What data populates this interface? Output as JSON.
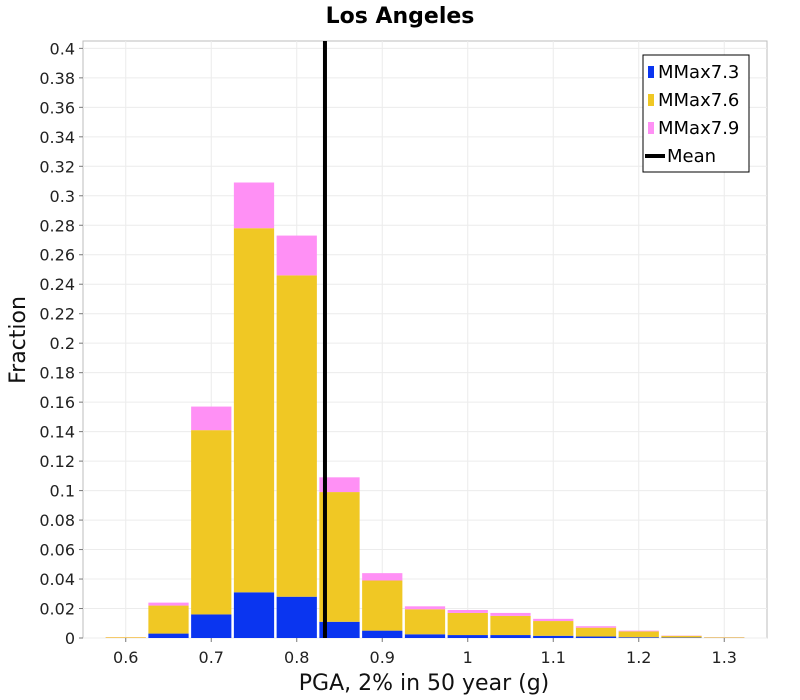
{
  "chart_data": {
    "type": "bar",
    "stacked": true,
    "title": "Los Angeles",
    "xlabel": "PGA, 2% in 50 year (g)",
    "ylabel": "Fraction",
    "xlim": [
      0.55,
      1.35
    ],
    "ylim": [
      0,
      0.405
    ],
    "grid": true,
    "legend_position": "top-right",
    "x_ticks": [
      "0.6",
      "0.7",
      "0.8",
      "0.9",
      "1",
      "1.1",
      "1.2",
      "1.3"
    ],
    "x_tick_values": [
      0.6,
      0.7,
      0.8,
      0.9,
      1.0,
      1.1,
      1.2,
      1.3
    ],
    "y_ticks": [
      "0",
      "0.02",
      "0.04",
      "0.06",
      "0.08",
      "0.1",
      "0.12",
      "0.14",
      "0.16",
      "0.18",
      "0.2",
      "0.22",
      "0.24",
      "0.26",
      "0.28",
      "0.3",
      "0.32",
      "0.34",
      "0.36",
      "0.38",
      "0.4"
    ],
    "y_tick_values": [
      0,
      0.02,
      0.04,
      0.06,
      0.08,
      0.1,
      0.12,
      0.14,
      0.16,
      0.18,
      0.2,
      0.22,
      0.24,
      0.26,
      0.28,
      0.3,
      0.32,
      0.34,
      0.36,
      0.38,
      0.4
    ],
    "bin_width": 0.05,
    "bin_centers": [
      0.6,
      0.65,
      0.7,
      0.75,
      0.8,
      0.85,
      0.9,
      0.95,
      1.0,
      1.05,
      1.1,
      1.15,
      1.2,
      1.25,
      1.3
    ],
    "series": [
      {
        "name": "MMax7.3",
        "color": "#0a35f0",
        "values": [
          0.0,
          0.003,
          0.016,
          0.031,
          0.028,
          0.011,
          0.005,
          0.0025,
          0.002,
          0.002,
          0.0015,
          0.001,
          0.0005,
          0.0003,
          0.0001
        ]
      },
      {
        "name": "MMax7.6",
        "color": "#f0c824",
        "values": [
          0.0005,
          0.019,
          0.125,
          0.247,
          0.218,
          0.088,
          0.034,
          0.017,
          0.015,
          0.013,
          0.01,
          0.006,
          0.004,
          0.0012,
          0.0004
        ]
      },
      {
        "name": "MMax7.9",
        "color": "#ff90f5",
        "values": [
          0.0001,
          0.002,
          0.016,
          0.031,
          0.027,
          0.01,
          0.005,
          0.002,
          0.002,
          0.002,
          0.0015,
          0.001,
          0.0005,
          0.0002,
          0.0001
        ]
      }
    ],
    "mean": {
      "name": "Mean",
      "x": 0.833,
      "color": "#000000"
    }
  }
}
